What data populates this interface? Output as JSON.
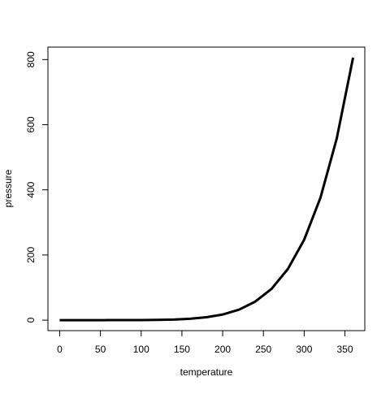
{
  "chart_data": {
    "type": "line",
    "x_label": "temperature",
    "y_label": "pressure",
    "x": [
      0,
      20,
      40,
      60,
      80,
      100,
      120,
      140,
      160,
      180,
      200,
      220,
      240,
      260,
      280,
      300,
      320,
      340,
      360
    ],
    "series": [
      {
        "color": "#000000",
        "values": [
          0.0002,
          0.0012,
          0.006,
          0.03,
          0.09,
          0.27,
          0.75,
          1.85,
          4.2,
          8.8,
          17.3,
          32.1,
          57,
          96,
          157,
          247,
          376,
          558,
          806
        ]
      }
    ],
    "xlim": [
      -14.4,
      374.4
    ],
    "ylim": [
      -32.24,
      838.24
    ],
    "xticks": [
      0,
      50,
      100,
      150,
      200,
      250,
      300,
      350
    ],
    "yticks": [
      0,
      200,
      400,
      600,
      800
    ]
  }
}
